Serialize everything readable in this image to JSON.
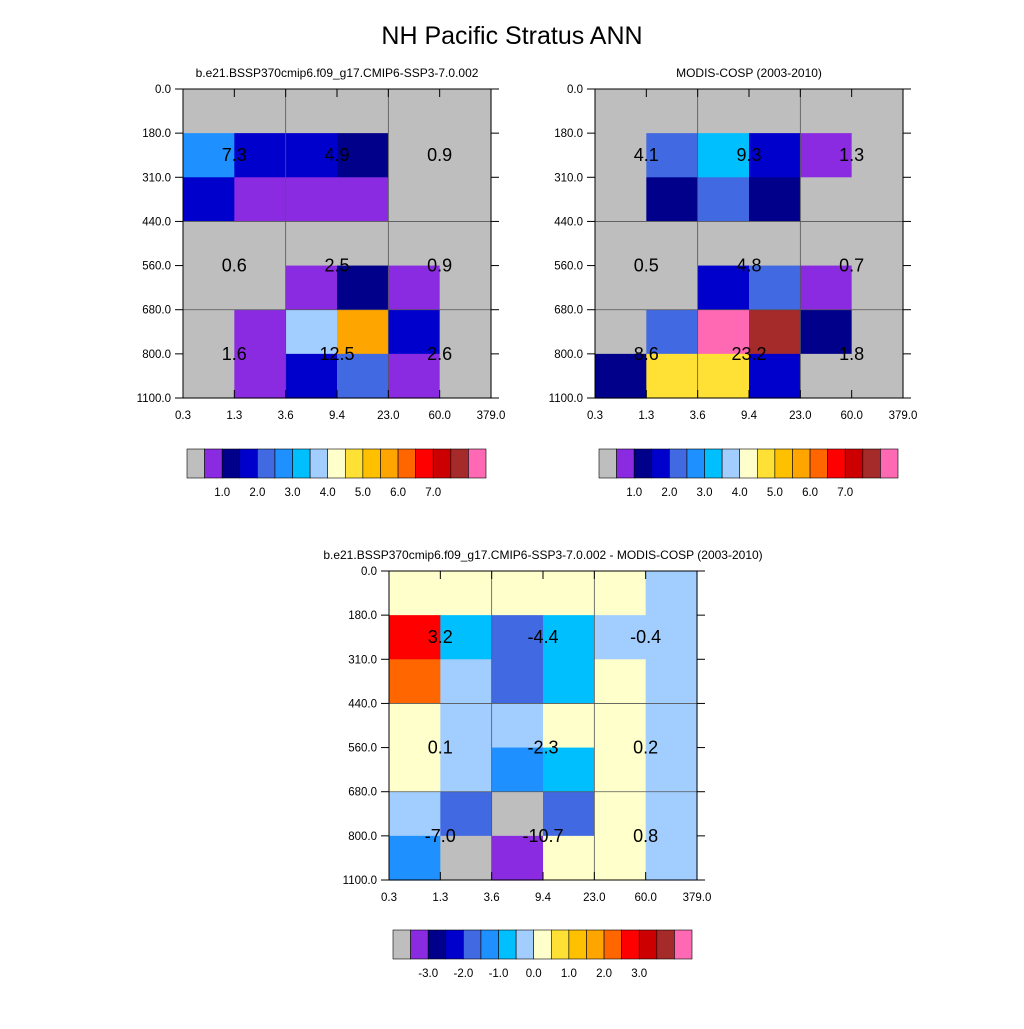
{
  "figure_title": "NH Pacific Stratus ANN",
  "chart_data": [
    {
      "type": "heatmap",
      "title": "b.e21.BSSP370cmip6.f09_g17.CMIP6-SSP3-7.0.002",
      "x_ticks": [
        "0.3",
        "1.3",
        "3.6",
        "9.4",
        "23.0",
        "60.0",
        "379.0"
      ],
      "y_ticks": [
        "0.0",
        "180.0",
        "310.0",
        "440.0",
        "560.0",
        "680.0",
        "800.0",
        "1100.0"
      ],
      "cells": [
        [
          "#bebebe",
          "#bebebe",
          "#bebebe",
          "#bebebe",
          "#bebebe",
          "#bebebe"
        ],
        [
          "#1e90ff",
          "#0000cd",
          "#0000cd",
          "#00008b",
          "#bebebe",
          "#bebebe"
        ],
        [
          "#0000cd",
          "#8a2be2",
          "#8a2be2",
          "#8a2be2",
          "#bebebe",
          "#bebebe"
        ],
        [
          "#bebebe",
          "#bebebe",
          "#bebebe",
          "#bebebe",
          "#bebebe",
          "#bebebe"
        ],
        [
          "#bebebe",
          "#bebebe",
          "#8a2be2",
          "#00008b",
          "#8a2be2",
          "#bebebe"
        ],
        [
          "#bebebe",
          "#8a2be2",
          "#a2cdff",
          "#ffa500",
          "#0000cd",
          "#bebebe"
        ],
        [
          "#bebebe",
          "#8a2be2",
          "#0000cd",
          "#4169e1",
          "#8a2be2",
          "#bebebe"
        ]
      ],
      "block_labels": [
        "7.3",
        "4.9",
        "0.9",
        "0.6",
        "2.5",
        "0.9",
        "1.6",
        "12.5",
        "2.6"
      ],
      "colorbar": {
        "colors": [
          "#bebebe",
          "#8a2be2",
          "#00008b",
          "#0000cd",
          "#4169e1",
          "#1e90ff",
          "#00bfff",
          "#a2cdff",
          "#ffffcc",
          "#ffe135",
          "#ffc000",
          "#ffa500",
          "#ff6600",
          "#ff0000",
          "#cc0000",
          "#a52a2a",
          "#ff69b4"
        ],
        "labels": [
          "1.0",
          "2.0",
          "3.0",
          "4.0",
          "5.0",
          "6.0",
          "7.0"
        ]
      }
    },
    {
      "type": "heatmap",
      "title": "MODIS-COSP (2003-2010)",
      "x_ticks": [
        "0.3",
        "1.3",
        "3.6",
        "9.4",
        "23.0",
        "60.0",
        "379.0"
      ],
      "y_ticks": [
        "0.0",
        "180.0",
        "310.0",
        "440.0",
        "560.0",
        "680.0",
        "800.0",
        "1100.0"
      ],
      "cells": [
        [
          "#bebebe",
          "#bebebe",
          "#bebebe",
          "#bebebe",
          "#bebebe",
          "#bebebe"
        ],
        [
          "#bebebe",
          "#4169e1",
          "#00bfff",
          "#0000cd",
          "#8a2be2",
          "#bebebe"
        ],
        [
          "#bebebe",
          "#00008b",
          "#4169e1",
          "#00008b",
          "#bebebe",
          "#bebebe"
        ],
        [
          "#bebebe",
          "#bebebe",
          "#bebebe",
          "#bebebe",
          "#bebebe",
          "#bebebe"
        ],
        [
          "#bebebe",
          "#bebebe",
          "#0000cd",
          "#4169e1",
          "#8a2be2",
          "#bebebe"
        ],
        [
          "#bebebe",
          "#4169e1",
          "#ff69b4",
          "#a52a2a",
          "#00008b",
          "#bebebe"
        ],
        [
          "#00008b",
          "#ffe135",
          "#ffe135",
          "#0000cd",
          "#bebebe",
          "#bebebe"
        ]
      ],
      "block_labels": [
        "4.1",
        "9.3",
        "1.3",
        "0.5",
        "4.8",
        "0.7",
        "8.6",
        "23.2",
        "1.8"
      ],
      "colorbar": {
        "colors": [
          "#bebebe",
          "#8a2be2",
          "#00008b",
          "#0000cd",
          "#4169e1",
          "#1e90ff",
          "#00bfff",
          "#a2cdff",
          "#ffffcc",
          "#ffe135",
          "#ffc000",
          "#ffa500",
          "#ff6600",
          "#ff0000",
          "#cc0000",
          "#a52a2a",
          "#ff69b4"
        ],
        "labels": [
          "1.0",
          "2.0",
          "3.0",
          "4.0",
          "5.0",
          "6.0",
          "7.0"
        ]
      }
    },
    {
      "type": "heatmap",
      "title": "b.e21.BSSP370cmip6.f09_g17.CMIP6-SSP3-7.0.002 - MODIS-COSP (2003-2010)",
      "x_ticks": [
        "0.3",
        "1.3",
        "3.6",
        "9.4",
        "23.0",
        "60.0",
        "379.0"
      ],
      "y_ticks": [
        "0.0",
        "180.0",
        "310.0",
        "440.0",
        "560.0",
        "680.0",
        "800.0",
        "1100.0"
      ],
      "cells": [
        [
          "#ffffcc",
          "#ffffcc",
          "#ffffcc",
          "#ffffcc",
          "#ffffcc",
          "#a2cdff"
        ],
        [
          "#ff0000",
          "#00bfff",
          "#4169e1",
          "#00bfff",
          "#a2cdff",
          "#a2cdff"
        ],
        [
          "#ff6600",
          "#a2cdff",
          "#4169e1",
          "#00bfff",
          "#ffffcc",
          "#a2cdff"
        ],
        [
          "#ffffcc",
          "#a2cdff",
          "#a2cdff",
          "#ffffcc",
          "#ffffcc",
          "#a2cdff"
        ],
        [
          "#ffffcc",
          "#a2cdff",
          "#1e90ff",
          "#00bfff",
          "#ffffcc",
          "#a2cdff"
        ],
        [
          "#a2cdff",
          "#4169e1",
          "#bebebe",
          "#4169e1",
          "#ffffcc",
          "#a2cdff"
        ],
        [
          "#1e90ff",
          "#bebebe",
          "#8a2be2",
          "#ffffcc",
          "#ffffcc",
          "#a2cdff"
        ]
      ],
      "block_labels": [
        "3.2",
        "-4.4",
        "-0.4",
        "0.1",
        "-2.3",
        "0.2",
        "-7.0",
        "-10.7",
        "0.8"
      ],
      "colorbar": {
        "colors": [
          "#bebebe",
          "#8a2be2",
          "#00008b",
          "#0000cd",
          "#4169e1",
          "#1e90ff",
          "#00bfff",
          "#a2cdff",
          "#ffffcc",
          "#ffe135",
          "#ffc000",
          "#ffa500",
          "#ff6600",
          "#ff0000",
          "#cc0000",
          "#a52a2a",
          "#ff69b4"
        ],
        "labels": [
          "-3.0",
          "-2.0",
          "-1.0",
          "0.0",
          "1.0",
          "2.0",
          "3.0"
        ]
      }
    }
  ]
}
